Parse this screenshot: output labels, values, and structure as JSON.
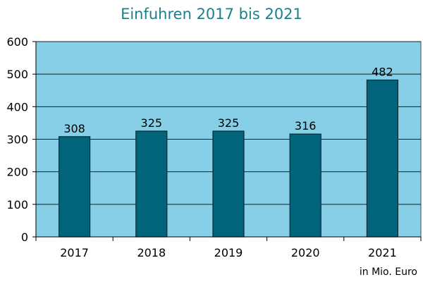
{
  "chart_data": {
    "type": "bar",
    "title": "Einfuhren 2017 bis 2021",
    "categories": [
      "2017",
      "2018",
      "2019",
      "2020",
      "2021"
    ],
    "values": [
      308,
      325,
      325,
      316,
      482
    ],
    "data_labels": [
      "308",
      "325",
      "325",
      "316",
      "482"
    ],
    "ylim": [
      0,
      600
    ],
    "yticks": [
      0,
      100,
      200,
      300,
      400,
      500,
      600
    ],
    "ytick_labels": [
      "0",
      "100",
      "200",
      "300",
      "400",
      "500",
      "600"
    ],
    "unit_note": "in Mio. Euro",
    "grid": true,
    "legend": false
  },
  "colors": {
    "plot_background": "#87cfe6",
    "bar_fill": "#01647a",
    "bar_stroke": "#0a2a33",
    "title_color": "#1d7f8c",
    "grid_color": "#1e1e1e"
  }
}
